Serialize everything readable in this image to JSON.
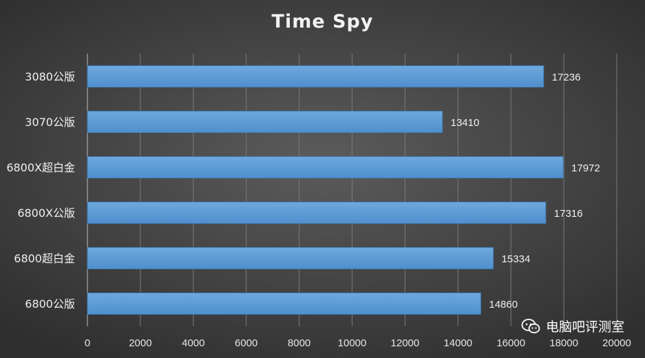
{
  "chart_data": {
    "type": "bar",
    "orientation": "horizontal",
    "title": "Time Spy",
    "categories": [
      "3080公版",
      "3070公版",
      "6800X超白金",
      "6800X公版",
      "6800超白金",
      "6800公版"
    ],
    "values": [
      17236,
      13410,
      17972,
      17316,
      15334,
      14860
    ],
    "data_labels": [
      "17236",
      "13410",
      "17972",
      "17316",
      "15334",
      "14860"
    ],
    "xlim": [
      0,
      20000
    ],
    "x_ticks": [
      "0",
      "2000",
      "4000",
      "6000",
      "8000",
      "10000",
      "12000",
      "14000",
      "16000",
      "18000",
      "20000"
    ],
    "grid": "vertical",
    "bar_color": "#5b9bd5",
    "legend": "none"
  },
  "watermark": {
    "text": "电脑吧评测室",
    "icon": "wechat-icon"
  }
}
